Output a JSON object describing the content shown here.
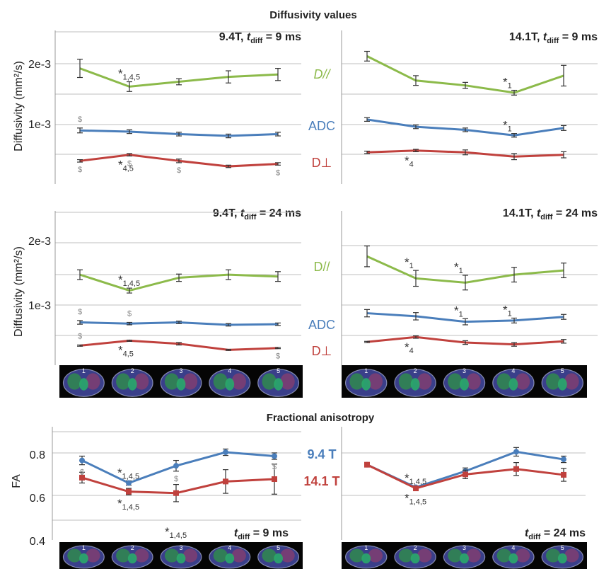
{
  "colors": {
    "green": "#8cba4a",
    "blue": "#4a7ebb",
    "red": "#c0413d",
    "grid": "#bfbfbf",
    "err": "#333333"
  },
  "sections": {
    "diff_title": "Diffusivity values",
    "fa_title": "Fractional anisotropy"
  },
  "axes": {
    "diff_ylabel": "Diffusivity (mm²/s)",
    "fa_ylabel": "FA",
    "tick_2e3": "2e-3",
    "tick_1e3": "1e-3",
    "fa_ticks": [
      "0.8",
      "0.6",
      "0.4"
    ]
  },
  "labels": {
    "d_par": "D//",
    "adc": "ADC",
    "d_perp": "D⊥",
    "fa_94": "9.4 T",
    "fa_141": "14.1 T",
    "dollar": "$"
  },
  "brain_slices": [
    "1",
    "2",
    "3",
    "4",
    "5"
  ],
  "chart_data": [
    {
      "type": "line",
      "panel": "diff-94-9",
      "title": "9.4T, tdiff = 9 ms",
      "x": [
        1,
        2,
        3,
        4,
        5
      ],
      "ylim": [
        0,
        0.0025
      ],
      "series": [
        {
          "name": "D//",
          "values": [
            0.0019,
            0.0016,
            0.00168,
            0.00176,
            0.0018
          ],
          "err": [
            0.00015,
            8e-05,
            5e-05,
            0.0001,
            0.0001
          ]
        },
        {
          "name": "ADC",
          "values": [
            0.00088,
            0.00086,
            0.00082,
            0.00079,
            0.00082
          ],
          "err": [
            4e-05,
            3e-05,
            3e-05,
            3e-05,
            3e-05
          ]
        },
        {
          "name": "D⊥",
          "values": [
            0.00038,
            0.00048,
            0.00038,
            0.00029,
            0.00033
          ],
          "err": [
            2e-05,
            2e-05,
            3e-05,
            2e-05,
            2e-05
          ]
        }
      ],
      "annotations": [
        {
          "series": "D//",
          "x": 2,
          "pos": "above",
          "text": "*",
          "sub": "1,4,5"
        },
        {
          "series": "D⊥",
          "x": 2,
          "pos": "below",
          "text": "*",
          "sub": "4,5"
        }
      ],
      "dollars": [
        {
          "series": "ADC",
          "x": 1,
          "pos": "above"
        },
        {
          "series": "D⊥",
          "x": 1,
          "pos": "below"
        },
        {
          "series": "D⊥",
          "x": 2,
          "pos": "below"
        },
        {
          "series": "D⊥",
          "x": 3,
          "pos": "below"
        },
        {
          "series": "D⊥",
          "x": 5,
          "pos": "below"
        }
      ]
    },
    {
      "type": "line",
      "panel": "diff-141-9",
      "title": "14.1T, tdiff = 9 ms",
      "x": [
        1,
        2,
        3,
        4,
        5
      ],
      "ylim": [
        0,
        0.0025
      ],
      "series": [
        {
          "name": "D//",
          "values": [
            0.0021,
            0.0017,
            0.00162,
            0.0015,
            0.00178
          ],
          "err": [
            8e-05,
            8e-05,
            5e-05,
            4e-05,
            0.00017
          ]
        },
        {
          "name": "ADC",
          "values": [
            0.00106,
            0.00094,
            0.00089,
            0.0008,
            0.00092
          ],
          "err": [
            3e-05,
            3e-05,
            3e-05,
            3e-05,
            4e-05
          ]
        },
        {
          "name": "D⊥",
          "values": [
            0.00052,
            0.00055,
            0.00052,
            0.00045,
            0.00048
          ],
          "err": [
            2e-05,
            2e-05,
            4e-05,
            5e-05,
            5e-05
          ]
        }
      ],
      "annotations": [
        {
          "series": "D//",
          "x": 4,
          "pos": "above",
          "text": "*",
          "sub": "1"
        },
        {
          "series": "ADC",
          "x": 4,
          "pos": "above",
          "text": "*",
          "sub": "1"
        },
        {
          "series": "D⊥",
          "x": 2,
          "pos": "below",
          "text": "*",
          "sub": "4"
        }
      ],
      "dollars": []
    },
    {
      "type": "line",
      "panel": "diff-94-24",
      "title": "9.4T, tdiff = 24 ms",
      "x": [
        1,
        2,
        3,
        4,
        5
      ],
      "ylim": [
        0,
        0.0025
      ],
      "series": [
        {
          "name": "D//",
          "values": [
            0.00148,
            0.00122,
            0.00143,
            0.00148,
            0.00145
          ],
          "err": [
            8e-05,
            4e-05,
            6e-05,
            8e-05,
            8e-05
          ]
        },
        {
          "name": "ADC",
          "values": [
            0.0007,
            0.00068,
            0.0007,
            0.00066,
            0.00067
          ],
          "err": [
            3e-05,
            2e-05,
            2e-05,
            2e-05,
            2e-05
          ]
        },
        {
          "name": "D⊥",
          "values": [
            0.00032,
            0.0004,
            0.00035,
            0.00025,
            0.00028
          ],
          "err": [
            1e-05,
            1e-05,
            2e-05,
            1e-05,
            1e-05
          ]
        }
      ],
      "annotations": [
        {
          "series": "D//",
          "x": 2,
          "pos": "above",
          "text": "*",
          "sub": "1,4,5"
        },
        {
          "series": "D⊥",
          "x": 2,
          "pos": "below",
          "text": "*",
          "sub": "4,5"
        }
      ],
      "dollars": [
        {
          "series": "ADC",
          "x": 1,
          "pos": "above"
        },
        {
          "series": "ADC",
          "x": 2,
          "pos": "above"
        },
        {
          "series": "D⊥",
          "x": 1,
          "pos": "above"
        },
        {
          "series": "D⊥",
          "x": 5,
          "pos": "below"
        }
      ]
    },
    {
      "type": "line",
      "panel": "diff-141-24",
      "title": "14.1T, tdiff = 24 ms",
      "x": [
        1,
        2,
        3,
        4,
        5
      ],
      "ylim": [
        0,
        0.0025
      ],
      "series": [
        {
          "name": "D//",
          "values": [
            0.00178,
            0.00142,
            0.00135,
            0.00148,
            0.00155
          ],
          "err": [
            0.00017,
            0.00013,
            0.00012,
            0.00012,
            0.00012
          ]
        },
        {
          "name": "ADC",
          "values": [
            0.00085,
            0.0008,
            0.00071,
            0.00073,
            0.00079
          ],
          "err": [
            6e-05,
            6e-05,
            5e-05,
            4e-05,
            4e-05
          ]
        },
        {
          "name": "D⊥",
          "values": [
            0.00038,
            0.00046,
            0.00037,
            0.00034,
            0.00039
          ],
          "err": [
            1e-05,
            2e-05,
            3e-05,
            3e-05,
            3e-05
          ]
        }
      ],
      "annotations": [
        {
          "series": "D//",
          "x": 2,
          "pos": "above",
          "text": "*",
          "sub": "1"
        },
        {
          "series": "D//",
          "x": 3,
          "pos": "above",
          "text": "*",
          "sub": "1"
        },
        {
          "series": "ADC",
          "x": 3,
          "pos": "above",
          "text": "*",
          "sub": "1"
        },
        {
          "series": "ADC",
          "x": 4,
          "pos": "above",
          "text": "*",
          "sub": "1"
        },
        {
          "series": "D⊥",
          "x": 2,
          "pos": "below",
          "text": "*",
          "sub": "4"
        }
      ],
      "dollars": []
    },
    {
      "type": "line",
      "panel": "fa-9",
      "title": "tdiff = 9 ms",
      "x": [
        1,
        2,
        3,
        4,
        5
      ],
      "ylim": [
        0.4,
        0.92
      ],
      "yticks": [
        0.4,
        0.6,
        0.8
      ],
      "series": [
        {
          "name": "9.4 T",
          "values": [
            0.77,
            0.665,
            0.745,
            0.808,
            0.79
          ],
          "err": [
            0.02,
            0.01,
            0.025,
            0.015,
            0.015
          ],
          "marker": "circle"
        },
        {
          "name": "14.1 T",
          "values": [
            0.69,
            0.625,
            0.618,
            0.672,
            0.683
          ],
          "err": [
            0.025,
            0.015,
            0.04,
            0.055,
            0.07
          ],
          "marker": "square"
        }
      ],
      "annotations": [
        {
          "series": "9.4 T",
          "x": 2,
          "pos": "above",
          "text": "*",
          "sub": "1,4,5"
        },
        {
          "series": "14.1 T",
          "x": 2,
          "pos": "below",
          "text": "*",
          "sub": "1,4,5"
        },
        {
          "series": "none",
          "x": 3,
          "y": 0.42,
          "pos": "at",
          "text": "*",
          "sub": "1,4,5"
        }
      ],
      "dollars": [
        {
          "series": "9.4 T",
          "x": 1,
          "pos": "below"
        },
        {
          "series": "9.4 T",
          "x": 3,
          "pos": "below"
        },
        {
          "series": "9.4 T",
          "x": 5,
          "pos": "below"
        }
      ]
    },
    {
      "type": "line",
      "panel": "fa-24",
      "title": "tdiff = 24 ms",
      "x": [
        1,
        2,
        3,
        4,
        5
      ],
      "ylim": [
        0.4,
        0.92
      ],
      "yticks": [
        0.4,
        0.6,
        0.8
      ],
      "series": [
        {
          "name": "9.4 T",
          "values": [
            0.75,
            0.645,
            0.72,
            0.81,
            0.775
          ],
          "err": [
            0.005,
            0.005,
            0.015,
            0.02,
            0.015
          ],
          "marker": "circle"
        },
        {
          "name": "14.1 T",
          "values": [
            0.75,
            0.64,
            0.705,
            0.73,
            0.703
          ],
          "err": [
            0.005,
            0.005,
            0.02,
            0.03,
            0.03
          ],
          "marker": "square"
        }
      ],
      "annotations": [
        {
          "series": "9.4 T",
          "x": 2,
          "pos": "above",
          "text": "*",
          "sub": "1,4,5"
        },
        {
          "series": "14.1 T",
          "x": 2,
          "pos": "below",
          "text": "*",
          "sub": "1,4,5"
        }
      ],
      "dollars": []
    }
  ]
}
